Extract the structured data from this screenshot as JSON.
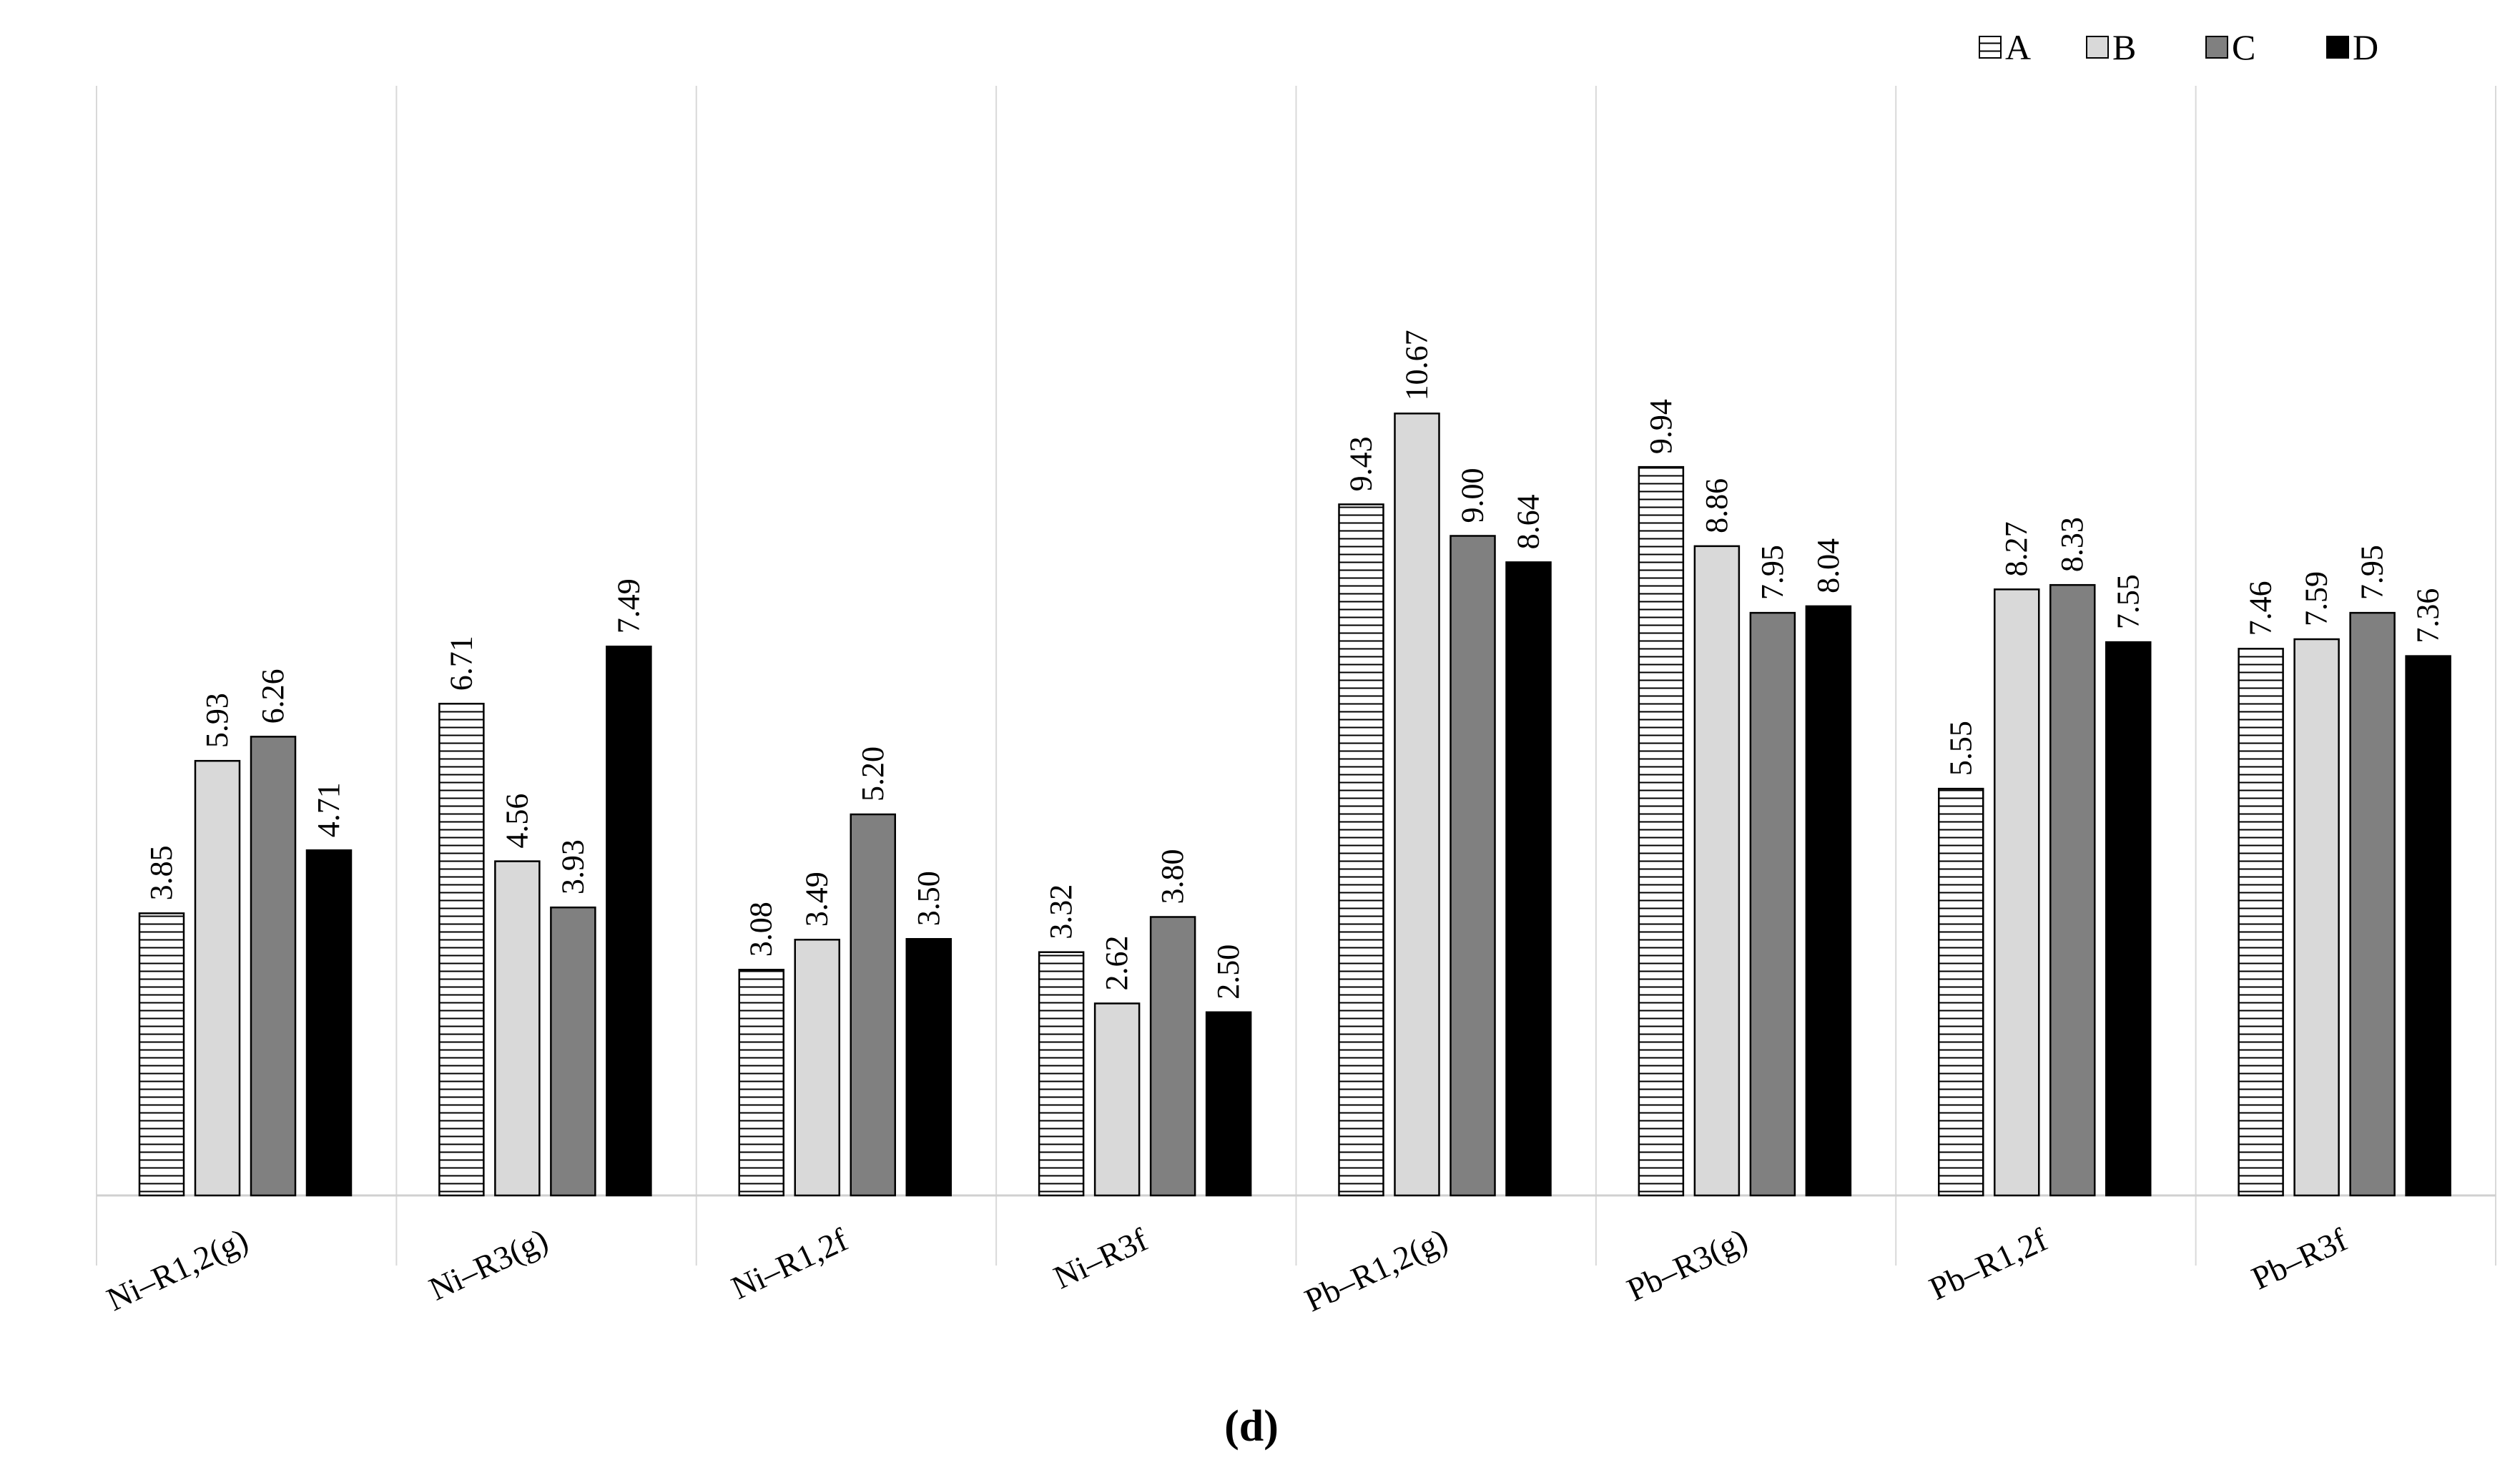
{
  "chart_data": {
    "type": "bar",
    "title": "",
    "xlabel": "",
    "ylabel": "",
    "caption": "(d)",
    "ylim": [
      0,
      13
    ],
    "grid": false,
    "legend": "top-right",
    "categories": [
      "Ni–R1,2(g)",
      "Ni–R3(g)",
      "Ni–R1,2f",
      "Ni–R3f",
      "Pb–R1,2(g)",
      "Pb–R3(g)",
      "Pb–R1,2f",
      "Pb–R3f"
    ],
    "series": [
      {
        "name": "A",
        "pattern": "horizontal-stripes",
        "color": "#ffffff",
        "values": [
          3.85,
          6.71,
          3.08,
          3.32,
          9.43,
          9.94,
          5.55,
          7.46
        ],
        "labels": [
          "3.85",
          "6.71",
          "3.08",
          "3.32",
          "9.43",
          "9.94",
          "5.55",
          "7.46"
        ]
      },
      {
        "name": "B",
        "pattern": "solid",
        "color": "#d9d9d9",
        "values": [
          5.93,
          4.56,
          3.49,
          2.62,
          10.67,
          8.86,
          8.27,
          7.59
        ],
        "labels": [
          "5.93",
          "4.56",
          "3.49",
          "2.62",
          "10.67",
          "8.86",
          "8.27",
          "7.59"
        ]
      },
      {
        "name": "C",
        "pattern": "solid",
        "color": "#808080",
        "values": [
          6.26,
          3.93,
          5.2,
          3.8,
          9.0,
          7.95,
          8.33,
          7.95
        ],
        "labels": [
          "6.26",
          "3.93",
          "5.20",
          "3.80",
          "9.00",
          "7.95",
          "8.33",
          "7.95"
        ]
      },
      {
        "name": "D",
        "pattern": "solid",
        "color": "#000000",
        "values": [
          4.71,
          7.49,
          3.5,
          2.5,
          8.64,
          8.04,
          7.55,
          7.36
        ],
        "labels": [
          "4.71",
          "7.49",
          "3.50",
          "2.50",
          "8.64",
          "8.04",
          "7.55",
          "7.36"
        ]
      }
    ]
  }
}
